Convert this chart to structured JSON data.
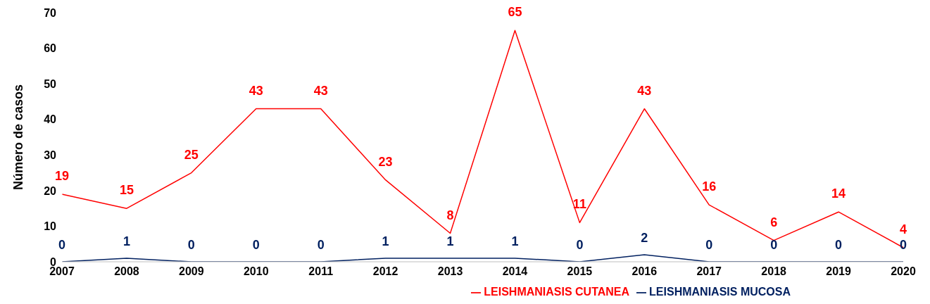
{
  "chart_data": {
    "type": "line",
    "ylabel": "Número de casos",
    "categories": [
      "2007",
      "2008",
      "2009",
      "2010",
      "2011",
      "2012",
      "2013",
      "2014",
      "2015",
      "2016",
      "2017",
      "2018",
      "2019",
      "2020"
    ],
    "series": [
      {
        "name": "LEISHMANIASIS CUTANEA",
        "color": "#ff0000",
        "values": [
          19,
          15,
          25,
          43,
          43,
          23,
          8,
          65,
          11,
          43,
          16,
          6,
          14,
          4
        ]
      },
      {
        "name": "LEISHMANIASIS MUCOSA",
        "color": "#002060",
        "values": [
          0,
          1,
          0,
          0,
          0,
          1,
          1,
          1,
          0,
          2,
          0,
          0,
          0,
          0
        ]
      }
    ],
    "ylim": [
      0,
      70
    ],
    "yticks": [
      0,
      10,
      20,
      30,
      40,
      50,
      60,
      70
    ],
    "legend": "bottom",
    "marker": "none",
    "line_style": "solid",
    "data_labels": true
  }
}
